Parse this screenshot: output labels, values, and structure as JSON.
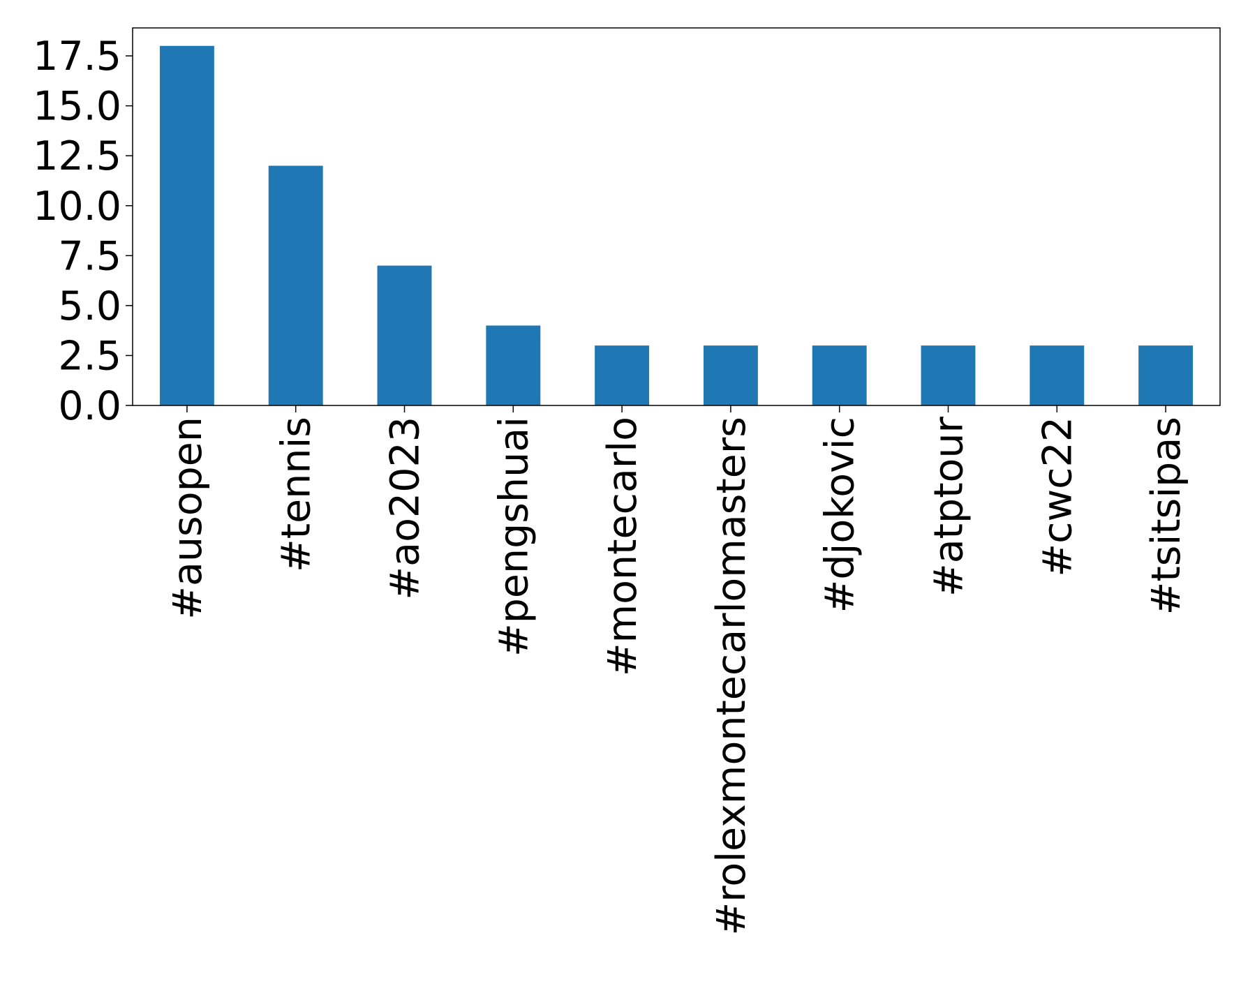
{
  "chart_data": {
    "type": "bar",
    "categories": [
      "#ausopen",
      "#tennis",
      "#ao2023",
      "#pengshuai",
      "#montecarlo",
      "#rolexmontecarlomasters",
      "#djokovic",
      "#atptour",
      "#cwc22",
      "#tsitsipas"
    ],
    "values": [
      18,
      12,
      7,
      4,
      3,
      3,
      3,
      3,
      3,
      3
    ],
    "color": "#1f77b4",
    "ylim": [
      0,
      18.9
    ],
    "yticks": [
      {
        "value": 0,
        "label": "0.0"
      },
      2.5,
      {
        "value": 5,
        "label": "5.0"
      },
      7.5,
      {
        "value": 10,
        "label": "10.0"
      },
      12.5,
      {
        "value": 15,
        "label": "15.0"
      },
      17.5
    ],
    "grid": false
  }
}
